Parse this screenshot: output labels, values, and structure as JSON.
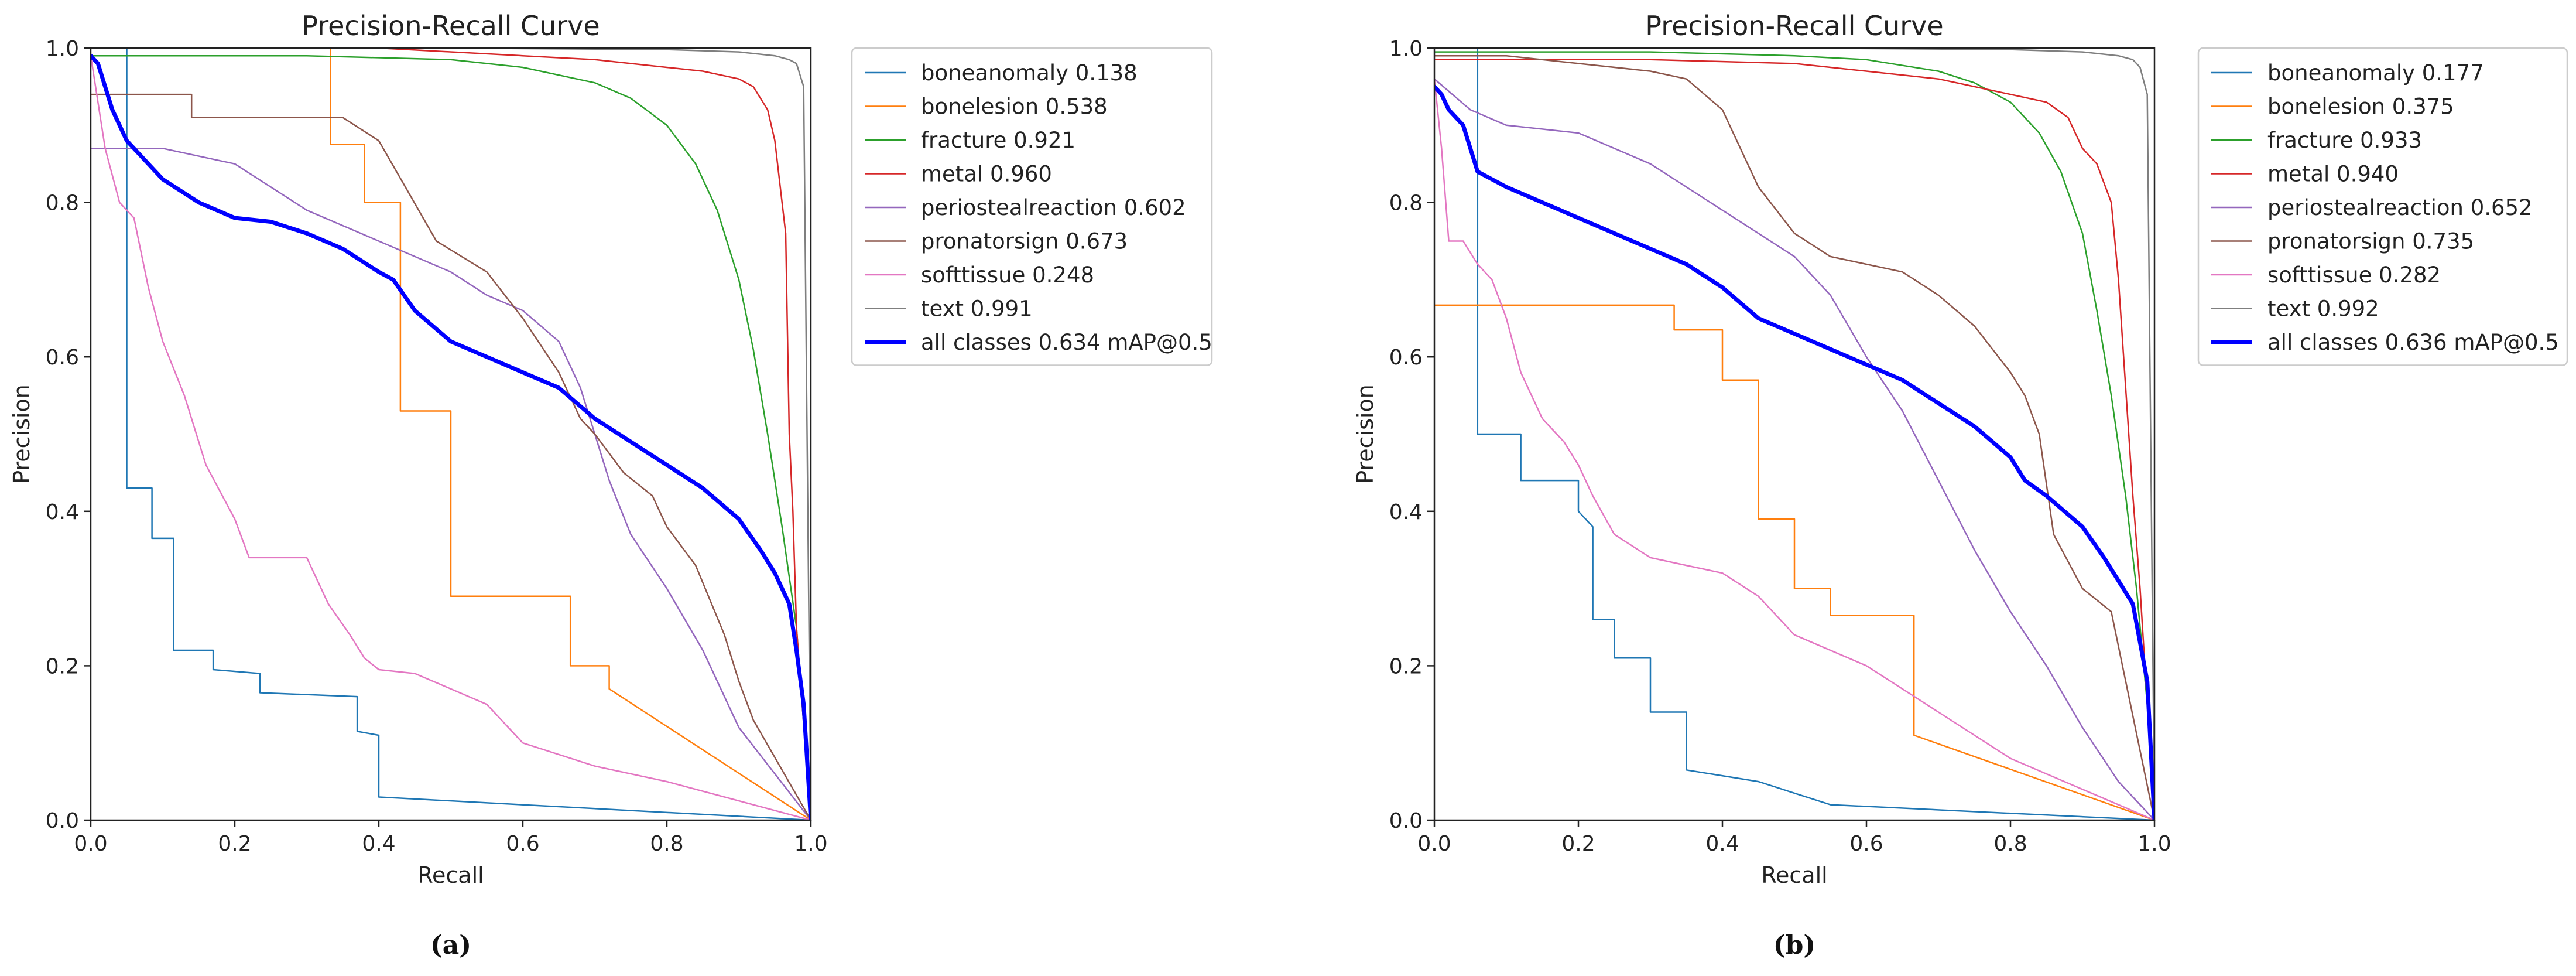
{
  "chart_data": [
    {
      "type": "line",
      "panel_label": "(a)",
      "title": "Precision-Recall Curve",
      "xlabel": "Recall",
      "ylabel": "Precision",
      "xlim": [
        0,
        1
      ],
      "ylim": [
        0,
        1
      ],
      "xticks": [
        "0.0",
        "0.2",
        "0.4",
        "0.6",
        "0.8",
        "1.0"
      ],
      "yticks": [
        "0.0",
        "0.2",
        "0.4",
        "0.6",
        "0.8",
        "1.0"
      ],
      "legend_position": "outside-right-top",
      "series": [
        {
          "name": "boneanomaly 0.138",
          "color": "#1f77b4",
          "width": 2.5,
          "x": [
            0,
            0.05,
            0.05,
            0.085,
            0.085,
            0.115,
            0.115,
            0.17,
            0.17,
            0.235,
            0.235,
            0.37,
            0.37,
            0.4,
            0.4,
            1.0
          ],
          "y": [
            1.0,
            1.0,
            0.43,
            0.43,
            0.365,
            0.365,
            0.22,
            0.22,
            0.195,
            0.19,
            0.165,
            0.16,
            0.115,
            0.11,
            0.03,
            0.0
          ]
        },
        {
          "name": "bonelesion 0.538",
          "color": "#ff7f0e",
          "width": 2.5,
          "x": [
            0,
            0.333,
            0.333,
            0.38,
            0.38,
            0.43,
            0.43,
            0.5,
            0.5,
            0.666,
            0.666,
            0.72,
            0.72,
            1.0
          ],
          "y": [
            1.0,
            1.0,
            0.875,
            0.875,
            0.8,
            0.8,
            0.53,
            0.53,
            0.29,
            0.29,
            0.2,
            0.2,
            0.17,
            0.0
          ]
        },
        {
          "name": "fracture 0.921",
          "color": "#2ca02c",
          "width": 2.5,
          "x": [
            0,
            0.3,
            0.5,
            0.6,
            0.7,
            0.75,
            0.8,
            0.84,
            0.87,
            0.9,
            0.92,
            0.94,
            0.96,
            0.98,
            1.0
          ],
          "y": [
            0.99,
            0.99,
            0.985,
            0.975,
            0.955,
            0.935,
            0.9,
            0.85,
            0.79,
            0.7,
            0.61,
            0.5,
            0.38,
            0.25,
            0.0
          ]
        },
        {
          "name": "metal 0.960",
          "color": "#d62728",
          "width": 2.5,
          "x": [
            0,
            0.4,
            0.6,
            0.7,
            0.8,
            0.85,
            0.9,
            0.92,
            0.94,
            0.95,
            0.96,
            0.965,
            0.97,
            0.975,
            0.98,
            1.0
          ],
          "y": [
            1.0,
            1.0,
            0.99,
            0.985,
            0.975,
            0.97,
            0.96,
            0.95,
            0.92,
            0.88,
            0.8,
            0.76,
            0.5,
            0.4,
            0.25,
            0.0
          ]
        },
        {
          "name": "periostealreaction 0.602",
          "color": "#9467bd",
          "width": 2.5,
          "x": [
            0,
            0.05,
            0.1,
            0.2,
            0.3,
            0.4,
            0.5,
            0.55,
            0.6,
            0.65,
            0.68,
            0.72,
            0.75,
            0.8,
            0.85,
            0.9,
            0.95,
            1.0
          ],
          "y": [
            0.87,
            0.87,
            0.87,
            0.85,
            0.79,
            0.75,
            0.71,
            0.68,
            0.66,
            0.62,
            0.56,
            0.44,
            0.37,
            0.3,
            0.22,
            0.12,
            0.06,
            0.0
          ]
        },
        {
          "name": "pronatorsign 0.673",
          "color": "#8c564b",
          "width": 2.5,
          "x": [
            0,
            0.06,
            0.14,
            0.14,
            0.35,
            0.4,
            0.48,
            0.55,
            0.6,
            0.65,
            0.68,
            0.7,
            0.74,
            0.78,
            0.8,
            0.84,
            0.88,
            0.9,
            0.92,
            1.0
          ],
          "y": [
            0.94,
            0.94,
            0.94,
            0.91,
            0.91,
            0.88,
            0.75,
            0.71,
            0.65,
            0.58,
            0.52,
            0.5,
            0.45,
            0.42,
            0.38,
            0.33,
            0.24,
            0.18,
            0.13,
            0.0
          ]
        },
        {
          "name": "softtissue 0.248",
          "color": "#e377c2",
          "width": 2.5,
          "x": [
            0,
            0.02,
            0.04,
            0.06,
            0.08,
            0.1,
            0.13,
            0.16,
            0.2,
            0.22,
            0.3,
            0.33,
            0.36,
            0.38,
            0.4,
            0.45,
            0.5,
            0.55,
            0.6,
            0.7,
            0.8,
            1.0
          ],
          "y": [
            0.99,
            0.87,
            0.8,
            0.78,
            0.69,
            0.62,
            0.55,
            0.46,
            0.39,
            0.34,
            0.34,
            0.28,
            0.24,
            0.21,
            0.195,
            0.19,
            0.17,
            0.15,
            0.1,
            0.07,
            0.05,
            0.0
          ]
        },
        {
          "name": "text 0.991",
          "color": "#7f7f7f",
          "width": 2.5,
          "x": [
            0,
            0.5,
            0.8,
            0.9,
            0.95,
            0.97,
            0.98,
            0.99,
            1.0
          ],
          "y": [
            1.0,
            1.0,
            0.998,
            0.995,
            0.99,
            0.985,
            0.98,
            0.95,
            0.0
          ]
        },
        {
          "name": "all classes 0.634 mAP@0.5",
          "color": "#0000ff",
          "width": 7,
          "x": [
            0,
            0.01,
            0.02,
            0.03,
            0.05,
            0.07,
            0.1,
            0.15,
            0.2,
            0.25,
            0.3,
            0.35,
            0.4,
            0.42,
            0.45,
            0.5,
            0.55,
            0.6,
            0.65,
            0.7,
            0.75,
            0.8,
            0.85,
            0.9,
            0.93,
            0.95,
            0.97,
            0.98,
            0.99,
            1.0
          ],
          "y": [
            0.99,
            0.98,
            0.95,
            0.92,
            0.88,
            0.86,
            0.83,
            0.8,
            0.78,
            0.775,
            0.76,
            0.74,
            0.71,
            0.7,
            0.66,
            0.62,
            0.6,
            0.58,
            0.56,
            0.52,
            0.49,
            0.46,
            0.43,
            0.39,
            0.35,
            0.32,
            0.28,
            0.22,
            0.15,
            0.0
          ]
        }
      ]
    },
    {
      "type": "line",
      "panel_label": "(b)",
      "title": "Precision-Recall Curve",
      "xlabel": "Recall",
      "ylabel": "Precision",
      "xlim": [
        0,
        1
      ],
      "ylim": [
        0,
        1
      ],
      "xticks": [
        "0.0",
        "0.2",
        "0.4",
        "0.6",
        "0.8",
        "1.0"
      ],
      "yticks": [
        "0.0",
        "0.2",
        "0.4",
        "0.6",
        "0.8",
        "1.0"
      ],
      "legend_position": "outside-right-top",
      "series": [
        {
          "name": "boneanomaly 0.177",
          "color": "#1f77b4",
          "width": 2.5,
          "x": [
            0,
            0.06,
            0.06,
            0.12,
            0.12,
            0.2,
            0.2,
            0.22,
            0.22,
            0.25,
            0.25,
            0.3,
            0.3,
            0.35,
            0.35,
            0.45,
            0.5,
            0.55,
            1.0
          ],
          "y": [
            1.0,
            1.0,
            0.5,
            0.5,
            0.44,
            0.44,
            0.4,
            0.38,
            0.26,
            0.26,
            0.21,
            0.21,
            0.14,
            0.14,
            0.065,
            0.05,
            0.035,
            0.02,
            0.0
          ]
        },
        {
          "name": "bonelesion 0.375",
          "color": "#ff7f0e",
          "width": 2.5,
          "x": [
            0,
            0.333,
            0.333,
            0.4,
            0.4,
            0.45,
            0.45,
            0.5,
            0.5,
            0.55,
            0.55,
            0.666,
            0.666,
            1.0
          ],
          "y": [
            0.667,
            0.667,
            0.635,
            0.635,
            0.57,
            0.57,
            0.39,
            0.39,
            0.3,
            0.3,
            0.265,
            0.265,
            0.11,
            0.0
          ]
        },
        {
          "name": "fracture 0.933",
          "color": "#2ca02c",
          "width": 2.5,
          "x": [
            0,
            0.3,
            0.5,
            0.6,
            0.7,
            0.75,
            0.8,
            0.84,
            0.87,
            0.9,
            0.92,
            0.94,
            0.96,
            0.975,
            0.99,
            1.0
          ],
          "y": [
            0.995,
            0.995,
            0.99,
            0.985,
            0.97,
            0.955,
            0.93,
            0.89,
            0.84,
            0.76,
            0.66,
            0.55,
            0.42,
            0.3,
            0.15,
            0.0
          ]
        },
        {
          "name": "metal 0.940",
          "color": "#d62728",
          "width": 2.5,
          "x": [
            0,
            0.3,
            0.5,
            0.6,
            0.7,
            0.75,
            0.8,
            0.85,
            0.88,
            0.9,
            0.92,
            0.94,
            0.95,
            0.96,
            0.97,
            0.98,
            1.0
          ],
          "y": [
            0.985,
            0.985,
            0.98,
            0.97,
            0.96,
            0.95,
            0.94,
            0.93,
            0.91,
            0.87,
            0.85,
            0.8,
            0.7,
            0.56,
            0.42,
            0.3,
            0.0
          ]
        },
        {
          "name": "periostealreaction 0.652",
          "color": "#9467bd",
          "width": 2.5,
          "x": [
            0,
            0.05,
            0.1,
            0.2,
            0.3,
            0.4,
            0.5,
            0.55,
            0.6,
            0.65,
            0.7,
            0.75,
            0.8,
            0.85,
            0.9,
            0.95,
            1.0
          ],
          "y": [
            0.96,
            0.92,
            0.9,
            0.89,
            0.85,
            0.79,
            0.73,
            0.68,
            0.6,
            0.53,
            0.44,
            0.35,
            0.27,
            0.2,
            0.12,
            0.05,
            0.0
          ]
        },
        {
          "name": "pronatorsign 0.735",
          "color": "#8c564b",
          "width": 2.5,
          "x": [
            0,
            0.1,
            0.3,
            0.35,
            0.4,
            0.45,
            0.5,
            0.55,
            0.6,
            0.65,
            0.7,
            0.75,
            0.8,
            0.82,
            0.84,
            0.86,
            0.9,
            0.94,
            0.96,
            1.0
          ],
          "y": [
            0.99,
            0.99,
            0.97,
            0.96,
            0.92,
            0.82,
            0.76,
            0.73,
            0.72,
            0.71,
            0.68,
            0.64,
            0.58,
            0.55,
            0.5,
            0.37,
            0.3,
            0.27,
            0.18,
            0.0
          ]
        },
        {
          "name": "softtissue 0.282",
          "color": "#e377c2",
          "width": 2.5,
          "x": [
            0,
            0.01,
            0.02,
            0.04,
            0.06,
            0.08,
            0.1,
            0.12,
            0.15,
            0.18,
            0.2,
            0.22,
            0.25,
            0.3,
            0.35,
            0.4,
            0.45,
            0.5,
            0.6,
            0.7,
            0.75,
            0.8,
            0.9,
            1.0
          ],
          "y": [
            0.96,
            0.87,
            0.75,
            0.75,
            0.72,
            0.7,
            0.65,
            0.58,
            0.52,
            0.49,
            0.46,
            0.42,
            0.37,
            0.34,
            0.33,
            0.32,
            0.29,
            0.24,
            0.2,
            0.14,
            0.11,
            0.08,
            0.04,
            0.0
          ]
        },
        {
          "name": "text 0.992",
          "color": "#7f7f7f",
          "width": 2.5,
          "x": [
            0,
            0.5,
            0.8,
            0.9,
            0.95,
            0.97,
            0.98,
            0.99,
            1.0
          ],
          "y": [
            1.0,
            1.0,
            0.998,
            0.995,
            0.99,
            0.985,
            0.975,
            0.94,
            0.0
          ]
        },
        {
          "name": "all classes 0.636 mAP@0.5",
          "color": "#0000ff",
          "width": 7,
          "x": [
            0,
            0.01,
            0.02,
            0.04,
            0.06,
            0.1,
            0.15,
            0.2,
            0.25,
            0.3,
            0.35,
            0.4,
            0.45,
            0.5,
            0.55,
            0.6,
            0.65,
            0.7,
            0.75,
            0.8,
            0.82,
            0.85,
            0.9,
            0.93,
            0.95,
            0.97,
            0.98,
            0.99,
            1.0
          ],
          "y": [
            0.95,
            0.94,
            0.92,
            0.9,
            0.84,
            0.82,
            0.8,
            0.78,
            0.76,
            0.74,
            0.72,
            0.69,
            0.65,
            0.63,
            0.61,
            0.59,
            0.57,
            0.54,
            0.51,
            0.47,
            0.44,
            0.42,
            0.38,
            0.34,
            0.31,
            0.28,
            0.23,
            0.18,
            0.0
          ]
        }
      ]
    }
  ]
}
